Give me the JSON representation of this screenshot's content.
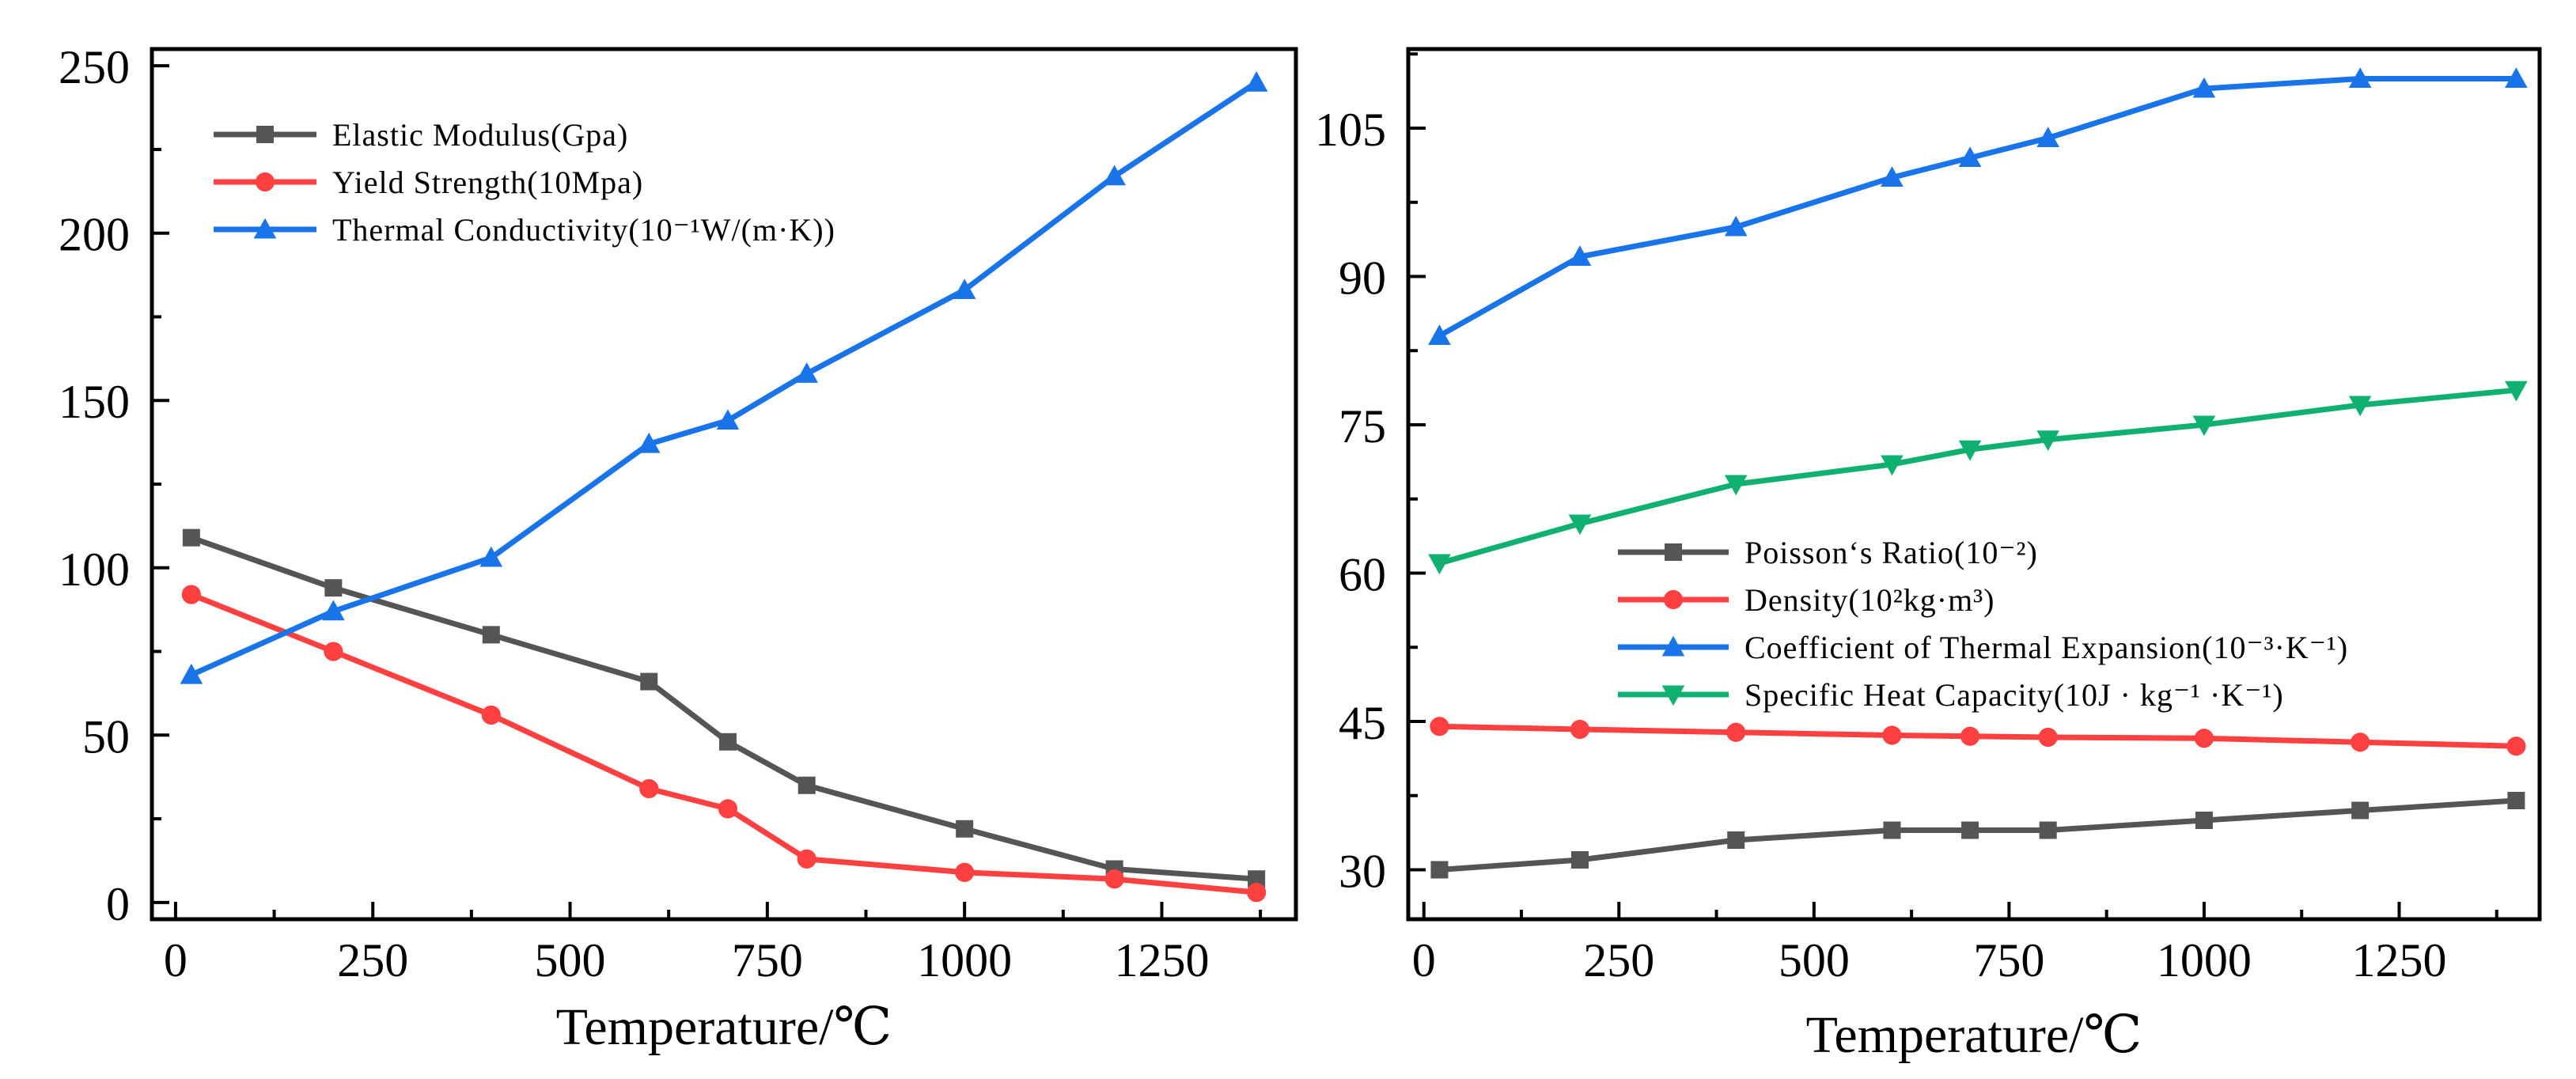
{
  "chart_data": [
    {
      "type": "line",
      "xlabel": "Temperature/℃",
      "ylabel": "",
      "xlim": [
        -30,
        1420
      ],
      "ylim": [
        -5,
        255
      ],
      "xticks": [
        0,
        250,
        500,
        750,
        1000,
        1250
      ],
      "yticks": [
        0,
        50,
        100,
        150,
        200,
        250
      ],
      "legend_position": "top-left",
      "series": [
        {
          "name": "Elastic Modulus(Gpa)",
          "color": "#555555",
          "marker": "square",
          "x": [
            20,
            200,
            400,
            600,
            700,
            800,
            1000,
            1190,
            1370
          ],
          "values": [
            109,
            94,
            80,
            66,
            48,
            35,
            22,
            10,
            7
          ]
        },
        {
          "name": "Yield Strength(10Mpa)",
          "color": "#ff4040",
          "marker": "circle",
          "x": [
            20,
            200,
            400,
            600,
            700,
            800,
            1000,
            1190,
            1370
          ],
          "values": [
            92,
            75,
            56,
            34,
            28,
            13,
            9,
            7,
            3
          ]
        },
        {
          "name": "Thermal Conductivity(10⁻¹W/(m·K))",
          "color": "#1874e8",
          "marker": "triangle-up",
          "x": [
            20,
            200,
            400,
            600,
            700,
            800,
            1000,
            1190,
            1370
          ],
          "values": [
            68,
            87,
            103,
            137,
            144,
            158,
            183,
            217,
            245
          ]
        }
      ]
    },
    {
      "type": "line",
      "xlabel": "Temperature/℃",
      "ylabel": "",
      "xlim": [
        -20,
        1430
      ],
      "ylim": [
        25,
        113
      ],
      "xticks": [
        0,
        250,
        500,
        750,
        1000,
        1250
      ],
      "yticks": [
        30,
        45,
        60,
        75,
        90,
        105
      ],
      "legend_position": "center-right",
      "series": [
        {
          "name": "Poisson‘s Ratio(10⁻²)",
          "color": "#555555",
          "marker": "square",
          "x": [
            20,
            200,
            400,
            600,
            700,
            800,
            1000,
            1200,
            1400
          ],
          "values": [
            30,
            31,
            33,
            34,
            34,
            34,
            35,
            36,
            37
          ]
        },
        {
          "name": "Density(10²kg·m³)",
          "color": "#ff4040",
          "marker": "circle",
          "x": [
            20,
            200,
            400,
            600,
            700,
            800,
            1000,
            1200,
            1400
          ],
          "values": [
            44.5,
            44.2,
            43.9,
            43.6,
            43.5,
            43.4,
            43.3,
            42.9,
            42.5
          ]
        },
        {
          "name": "Coefficient of Thermal Expansion(10⁻³·K⁻¹)",
          "color": "#1874e8",
          "marker": "triangle-up",
          "x": [
            20,
            200,
            400,
            600,
            700,
            800,
            1000,
            1200,
            1400
          ],
          "values": [
            84,
            92,
            95,
            100,
            102,
            104,
            109,
            110,
            110
          ]
        },
        {
          "name": "Specific Heat Capacity(10J · kg⁻¹ ·K⁻¹)",
          "color": "#10b070",
          "marker": "triangle-down",
          "x": [
            20,
            200,
            400,
            600,
            700,
            800,
            1000,
            1200,
            1400
          ],
          "values": [
            61,
            65,
            69,
            71,
            72.5,
            73.5,
            75,
            77,
            78.5
          ]
        }
      ]
    }
  ]
}
